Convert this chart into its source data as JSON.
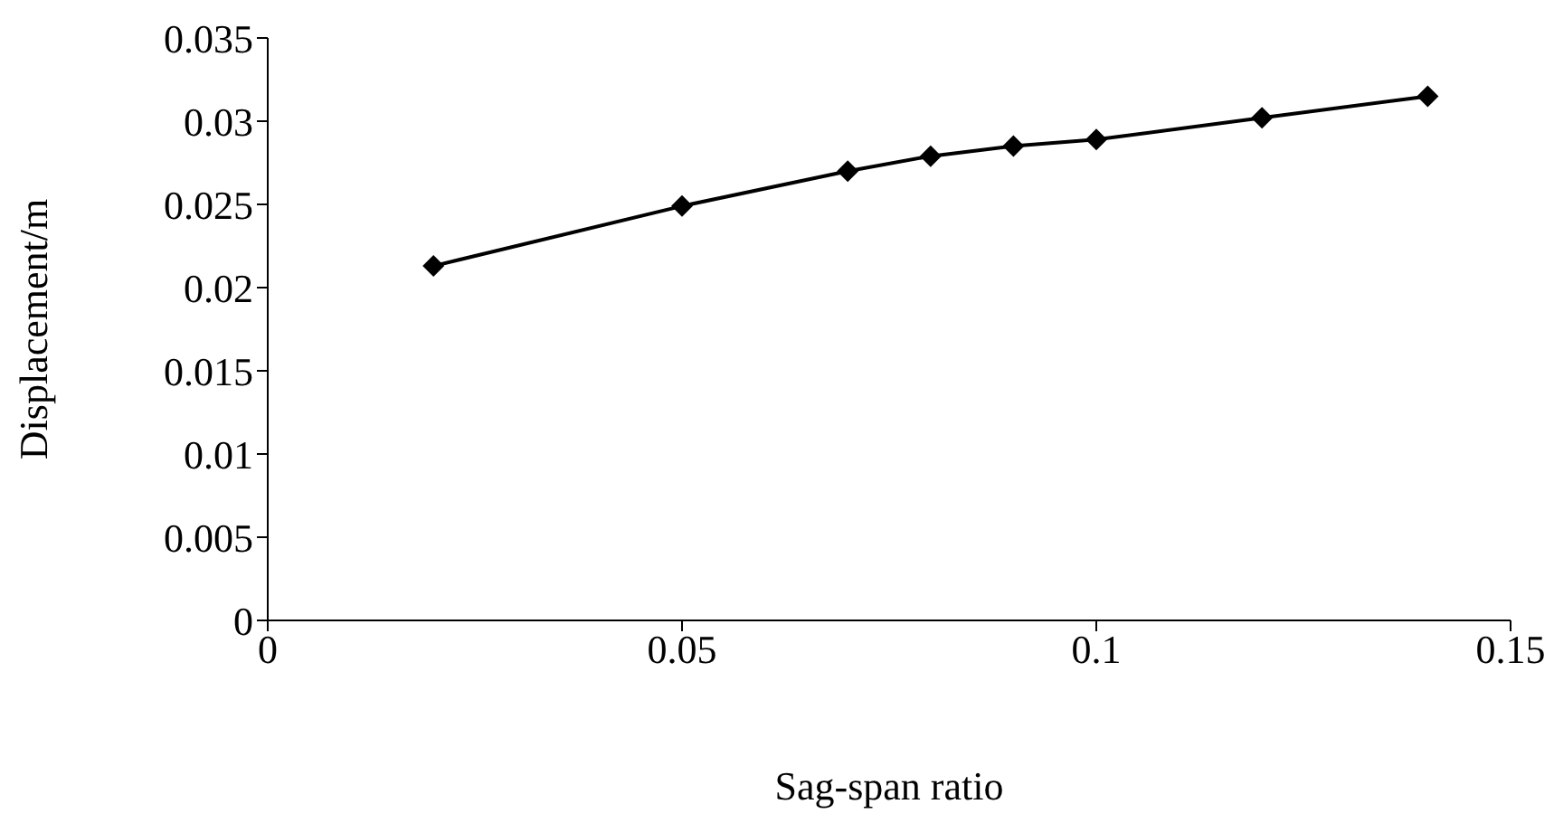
{
  "chart_data": {
    "type": "line",
    "xlabel": "Sag-span ratio",
    "ylabel": "Displacement/m",
    "x": [
      0.02,
      0.05,
      0.07,
      0.08,
      0.09,
      0.1,
      0.12,
      0.14
    ],
    "series": [
      {
        "color": "#000000",
        "values": [
          0.0213,
          0.0249,
          0.027,
          0.0279,
          0.0285,
          0.0289,
          0.0302,
          0.0315
        ]
      }
    ],
    "xlim": [
      0,
      0.15
    ],
    "xticks": [
      0,
      0.05,
      0.1,
      0.15
    ],
    "ylim": [
      0,
      0.035
    ],
    "yticks": [
      0,
      0.005,
      0.01,
      0.015,
      0.02,
      0.025,
      0.03,
      0.035
    ],
    "grid": false,
    "marker": "diamond",
    "line_style": "solid"
  }
}
